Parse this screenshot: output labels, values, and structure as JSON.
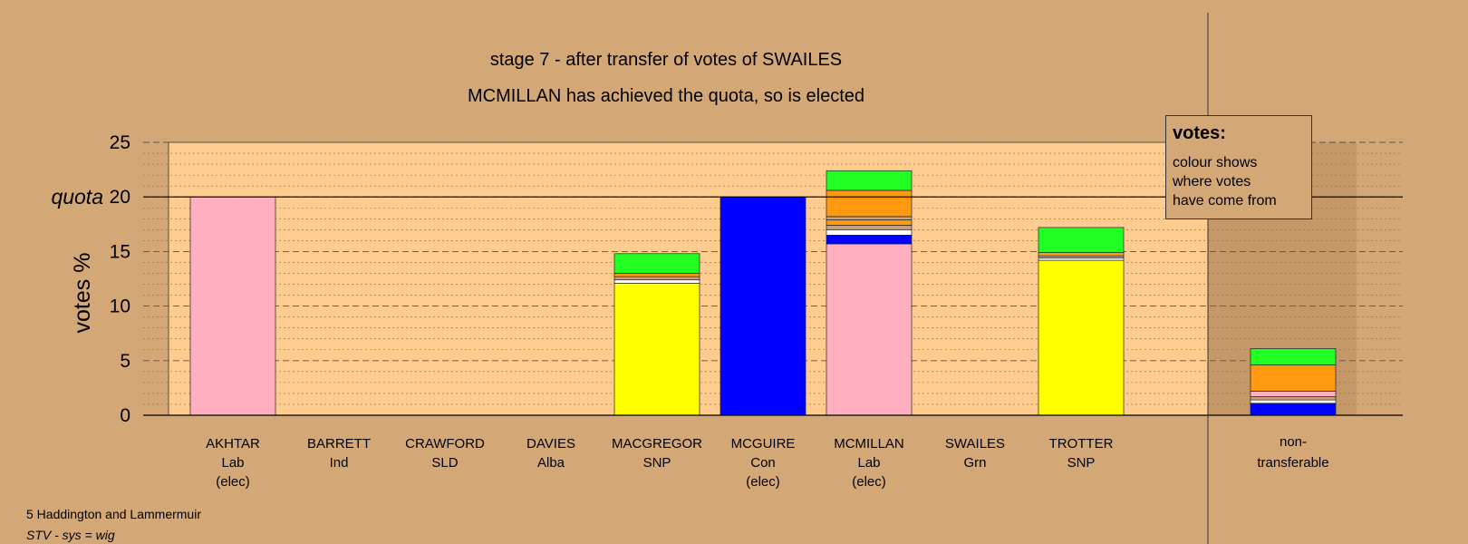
{
  "chart_data": {
    "type": "bar",
    "title": "stage 7 - after transfer of votes of SWAILES",
    "subtitle": "MCMILLAN has achieved the quota, so is elected",
    "ylabel": "votes %",
    "ylim": [
      0,
      25
    ],
    "yticks": [
      0,
      5,
      10,
      15,
      20,
      25
    ],
    "quota": 20,
    "quota_label": "quota",
    "grid": true,
    "legend_placement": "top-right",
    "candidates": [
      {
        "name": "AKHTAR",
        "party": "Lab",
        "status": "(elec)",
        "segments": [
          {
            "source": "Lab",
            "value": 20.0
          }
        ]
      },
      {
        "name": "BARRETT",
        "party": "Ind",
        "status": "",
        "segments": []
      },
      {
        "name": "CRAWFORD",
        "party": "SLD",
        "status": "",
        "segments": []
      },
      {
        "name": "DAVIES",
        "party": "Alba",
        "status": "",
        "segments": []
      },
      {
        "name": "MACGREGOR",
        "party": "SNP",
        "status": "",
        "segments": [
          {
            "source": "SNP",
            "value": 12.1
          },
          {
            "source": "Ind",
            "value": 0.3
          },
          {
            "source": "Alba",
            "value": 0.3
          },
          {
            "source": "SLD",
            "value": 0.3
          },
          {
            "source": "Grn",
            "value": 1.8
          }
        ]
      },
      {
        "name": "MCGUIRE",
        "party": "Con",
        "status": "(elec)",
        "segments": [
          {
            "source": "Con",
            "value": 20.0
          }
        ]
      },
      {
        "name": "MCMILLAN",
        "party": "Lab",
        "status": "(elec)",
        "segments": [
          {
            "source": "Lab",
            "value": 15.7
          },
          {
            "source": "Con",
            "value": 0.8
          },
          {
            "source": "Ind",
            "value": 0.5
          },
          {
            "source": "Alba",
            "value": 0.4
          },
          {
            "source": "SLD",
            "value": 0.5
          },
          {
            "source": "Alba",
            "value": 0.3
          },
          {
            "source": "SLD",
            "value": 2.4
          },
          {
            "source": "Grn",
            "value": 1.8
          }
        ]
      },
      {
        "name": "SWAILES",
        "party": "Grn",
        "status": "",
        "segments": []
      },
      {
        "name": "TROTTER",
        "party": "SNP",
        "status": "",
        "segments": [
          {
            "source": "SNP",
            "value": 14.2
          },
          {
            "source": "Ind",
            "value": 0.2
          },
          {
            "source": "Alba",
            "value": 0.2
          },
          {
            "source": "SLD",
            "value": 0.3
          },
          {
            "source": "Grn",
            "value": 2.3
          }
        ]
      }
    ],
    "nontransferable": {
      "label1": "non-",
      "label2": "transferable",
      "segments": [
        {
          "source": "Con",
          "value": 1.1
        },
        {
          "source": "Ind",
          "value": 0.3
        },
        {
          "source": "Alba",
          "value": 0.3
        },
        {
          "source": "Lab",
          "value": 0.5
        },
        {
          "source": "SNP",
          "value": 0.0
        },
        {
          "source": "Ind",
          "value": 0.0
        },
        {
          "source": "Alba",
          "value": 0.0
        },
        {
          "source": "SLD",
          "value": 2.4
        },
        {
          "source": "Grn",
          "value": 1.5
        }
      ]
    },
    "colors": {
      "Lab": "#FFB0C0",
      "SNP": "#FFFF00",
      "Con": "#0000FF",
      "Grn": "#22FF22",
      "SLD": "#FF9910",
      "Ind": "#FFFFFF",
      "Alba": "#C8A080",
      "background": "#D4A876",
      "plot_area": "#FFCC90",
      "nt_area": "#C49868"
    }
  },
  "legend": {
    "title": "votes:",
    "line1": "colour shows",
    "line2": "where votes",
    "line3": "have come from"
  },
  "footer": {
    "constituency": "5 Haddington and Lammermuir",
    "system": "STV - sys = wig"
  }
}
